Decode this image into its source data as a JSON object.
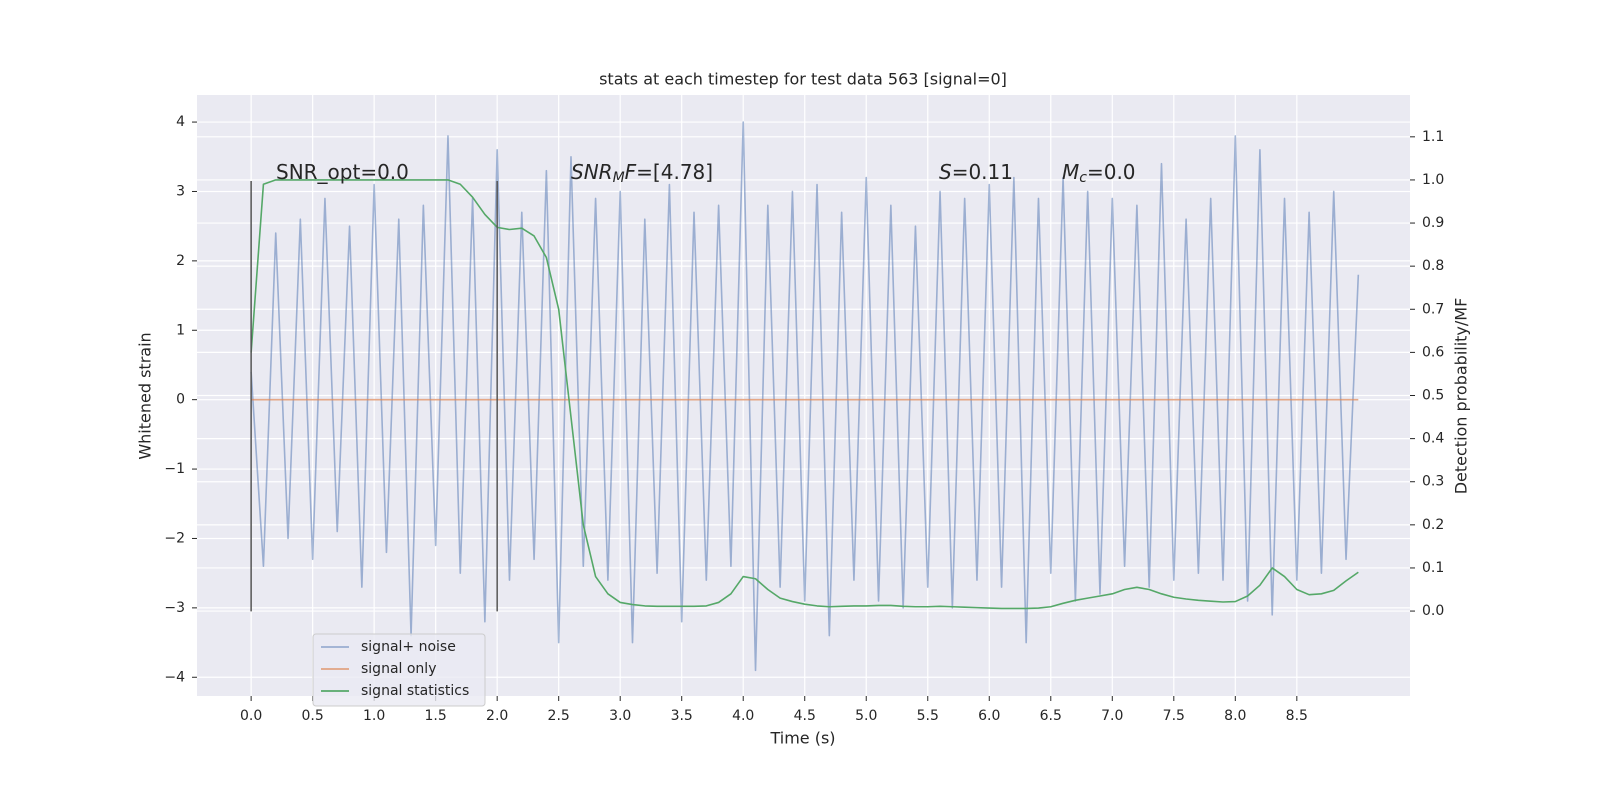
{
  "chart_data": {
    "type": "line",
    "title": "stats at each timestep for test data 563 [signal=0]",
    "xlabel": "Time (s)",
    "ylabel": "Whitened strain",
    "y2label": "Detection probability/MF",
    "x": [
      0,
      0.1,
      0.2,
      0.3,
      0.4,
      0.5,
      0.6,
      0.7,
      0.8,
      0.9,
      1.0,
      1.1,
      1.2,
      1.3,
      1.4,
      1.5,
      1.6,
      1.7,
      1.8,
      1.9,
      2.0,
      2.1,
      2.2,
      2.3,
      2.4,
      2.5,
      2.6,
      2.7,
      2.8,
      2.9,
      3.0,
      3.1,
      3.2,
      3.3,
      3.4,
      3.5,
      3.6,
      3.7,
      3.8,
      3.9,
      4.0,
      4.1,
      4.2,
      4.3,
      4.4,
      4.5,
      4.6,
      4.7,
      4.8,
      4.9,
      5.0,
      5.1,
      5.2,
      5.3,
      5.4,
      5.5,
      5.6,
      5.7,
      5.8,
      5.9,
      6.0,
      6.1,
      6.2,
      6.3,
      6.4,
      6.5,
      6.6,
      6.7,
      6.8,
      6.9,
      7.0,
      7.1,
      7.2,
      7.3,
      7.4,
      7.5,
      7.6,
      7.7,
      7.8,
      7.9,
      8.0,
      8.1,
      8.2,
      8.3,
      8.4,
      8.5,
      8.6,
      8.7,
      8.8,
      8.9,
      9.0
    ],
    "series": [
      {
        "name": "signal+ noise",
        "color": "#4c72b0",
        "opacity": 0.5,
        "axis": "y",
        "values": [
          0.4,
          -2.4,
          2.4,
          -2.0,
          2.6,
          -2.3,
          2.9,
          -1.9,
          2.5,
          -2.7,
          3.1,
          -2.2,
          2.6,
          -3.4,
          2.8,
          -2.1,
          3.8,
          -2.5,
          2.9,
          -3.2,
          3.6,
          -2.6,
          2.7,
          -2.3,
          3.3,
          -3.5,
          3.5,
          -2.4,
          2.9,
          -2.6,
          3.0,
          -3.5,
          2.6,
          -2.5,
          3.1,
          -3.2,
          2.7,
          -2.6,
          2.8,
          -2.4,
          4.0,
          -3.9,
          2.8,
          -2.7,
          3.0,
          -2.9,
          3.1,
          -3.4,
          2.7,
          -2.6,
          3.2,
          -2.9,
          2.8,
          -3.0,
          2.5,
          -2.7,
          3.0,
          -3.0,
          2.9,
          -2.6,
          3.1,
          -2.7,
          3.2,
          -3.5,
          2.9,
          -2.5,
          3.2,
          -2.9,
          3.0,
          -2.8,
          2.9,
          -2.4,
          2.8,
          -2.7,
          3.4,
          -2.6,
          2.6,
          -2.5,
          2.9,
          -2.6,
          3.8,
          -2.9,
          3.6,
          -3.1,
          2.9,
          -2.6,
          2.7,
          -2.5,
          3.0,
          -2.3,
          1.8
        ]
      },
      {
        "name": "signal only",
        "color": "#dd8452",
        "opacity": 0.7,
        "axis": "y",
        "values": [
          0,
          0,
          0,
          0,
          0,
          0,
          0,
          0,
          0,
          0,
          0,
          0,
          0,
          0,
          0,
          0,
          0,
          0,
          0,
          0,
          0,
          0,
          0,
          0,
          0,
          0,
          0,
          0,
          0,
          0,
          0,
          0,
          0,
          0,
          0,
          0,
          0,
          0,
          0,
          0,
          0,
          0,
          0,
          0,
          0,
          0,
          0,
          0,
          0,
          0,
          0,
          0,
          0,
          0,
          0,
          0,
          0,
          0,
          0,
          0,
          0,
          0,
          0,
          0,
          0,
          0,
          0,
          0,
          0,
          0,
          0,
          0,
          0,
          0,
          0,
          0,
          0,
          0,
          0,
          0,
          0,
          0,
          0,
          0,
          0,
          0,
          0,
          0,
          0,
          0,
          0
        ]
      },
      {
        "name": "signal statistics",
        "color": "#55a868",
        "opacity": 1,
        "axis": "y2",
        "values": [
          0.6,
          0.99,
          1.0,
          1.0,
          1.0,
          1.0,
          1.0,
          1.0,
          1.0,
          1.0,
          1.0,
          1.0,
          1.0,
          1.0,
          1.0,
          1.0,
          1.0,
          0.99,
          0.96,
          0.92,
          0.89,
          0.885,
          0.888,
          0.87,
          0.82,
          0.7,
          0.45,
          0.2,
          0.08,
          0.04,
          0.02,
          0.015,
          0.012,
          0.011,
          0.011,
          0.011,
          0.011,
          0.012,
          0.02,
          0.04,
          0.08,
          0.075,
          0.05,
          0.03,
          0.022,
          0.016,
          0.012,
          0.01,
          0.011,
          0.012,
          0.012,
          0.013,
          0.013,
          0.011,
          0.01,
          0.01,
          0.011,
          0.01,
          0.009,
          0.008,
          0.007,
          0.006,
          0.006,
          0.006,
          0.007,
          0.01,
          0.018,
          0.025,
          0.03,
          0.035,
          0.04,
          0.05,
          0.055,
          0.05,
          0.04,
          0.032,
          0.028,
          0.025,
          0.023,
          0.021,
          0.022,
          0.035,
          0.06,
          0.1,
          0.08,
          0.05,
          0.038,
          0.04,
          0.048,
          0.07,
          0.09
        ]
      }
    ],
    "vlines": {
      "x": [
        0,
        2
      ],
      "ymin": -3.05,
      "ymax": 3.15,
      "color": "#555555"
    },
    "annotations": [
      [
        {
          "text": "SNR_opt=0.0",
          "style": "normal"
        }
      ],
      [
        {
          "text": "SNR",
          "style": "italic"
        },
        {
          "text": "M",
          "style": "italic-sub"
        },
        {
          "text": "F",
          "style": "italic"
        },
        {
          "text": "=[4.78]",
          "style": "normal"
        }
      ],
      [
        {
          "text": "S",
          "style": "italic"
        },
        {
          "text": "=0.11",
          "style": "normal"
        }
      ],
      [
        {
          "text": "M",
          "style": "italic"
        },
        {
          "text": "c",
          "style": "italic-sub"
        },
        {
          "text": "=0.0",
          "style": "normal"
        }
      ]
    ],
    "xlim": [
      -0.44,
      9.42
    ],
    "xticks": [
      {
        "value": 0,
        "label": "0.0"
      },
      0.5,
      {
        "value": 1,
        "label": "1.0"
      },
      1.5,
      {
        "value": 2,
        "label": "2.0"
      },
      2.5,
      {
        "value": 3,
        "label": "3.0"
      },
      3.5,
      {
        "value": 4,
        "label": "4.0"
      },
      4.5,
      {
        "value": 5,
        "label": "5.0"
      },
      5.5,
      {
        "value": 6,
        "label": "6.0"
      },
      6.5,
      {
        "value": 7,
        "label": "7.0"
      },
      7.5,
      {
        "value": 8,
        "label": "8.0"
      },
      8.5
    ],
    "ylim": [
      -4.27,
      4.39
    ],
    "yticks": [
      {
        "value": -4,
        "label": "−4"
      },
      {
        "value": -3,
        "label": "−3"
      },
      {
        "value": -2,
        "label": "−2"
      },
      {
        "value": -1,
        "label": "−1"
      },
      0,
      1,
      2,
      3,
      4
    ],
    "y2lim": [
      -0.197,
      1.197
    ],
    "y2ticks": [
      {
        "value": 0,
        "label": "0.0"
      },
      0.1,
      0.2,
      0.3,
      0.4,
      0.5,
      0.6,
      0.7,
      0.8,
      0.9,
      {
        "value": 1,
        "label": "1.0"
      },
      1.1
    ],
    "grid": true,
    "legend": "lower left"
  }
}
